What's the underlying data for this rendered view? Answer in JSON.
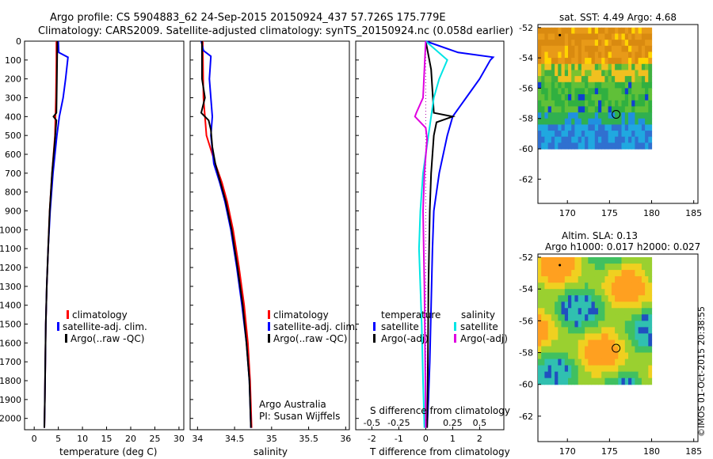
{
  "header": {
    "line1": "Argo profile: CS 5904883_62 24-Sep-2015 20150924_437 57.726S 175.779E",
    "line2": "Climatology: CARS2009. Satellite-adjusted climatology: synTS_20150924.nc (0.058d earlier)"
  },
  "depth_ticks": [
    "0",
    "100",
    "200",
    "300",
    "400",
    "500",
    "600",
    "700",
    "800",
    "900",
    "1000",
    "1100",
    "1200",
    "1300",
    "1400",
    "1500",
    "1600",
    "1700",
    "1800",
    "1900",
    "2000"
  ],
  "colors": {
    "climatology": "#ff0000",
    "satellite": "#0000ff",
    "argo": "#000000",
    "sat_salinity": "#00e5e5",
    "argo_salinity": "#e000e0"
  },
  "chart_data": [
    {
      "type": "line",
      "panel": "temperature",
      "xlabel": "temperature (deg C)",
      "xticks": [
        "0",
        "5",
        "10",
        "15",
        "20",
        "25",
        "30"
      ],
      "xlim": [
        -2,
        31
      ],
      "ylim": [
        2060,
        0
      ],
      "legend": [
        "climatology",
        "satellite-adj. clim.",
        "Argo(..raw -QC)"
      ],
      "series": [
        {
          "name": "climatology",
          "color": "#ff0000",
          "points": [
            [
              4.6,
              0
            ],
            [
              4.6,
              100
            ],
            [
              4.5,
              300
            ],
            [
              4.3,
              500
            ],
            [
              3.7,
              700
            ],
            [
              3.2,
              900
            ],
            [
              2.9,
              1100
            ],
            [
              2.6,
              1300
            ],
            [
              2.4,
              1500
            ],
            [
              2.3,
              1700
            ],
            [
              2.2,
              1900
            ],
            [
              2.1,
              2050
            ]
          ]
        },
        {
          "name": "satellite-adj. clim.",
          "color": "#0000ff",
          "points": [
            [
              5.0,
              0
            ],
            [
              5.1,
              60
            ],
            [
              7.0,
              85
            ],
            [
              6.5,
              200
            ],
            [
              6.0,
              300
            ],
            [
              5.2,
              400
            ],
            [
              4.7,
              500
            ],
            [
              3.9,
              700
            ],
            [
              3.3,
              900
            ],
            [
              2.9,
              1100
            ],
            [
              2.6,
              1300
            ],
            [
              2.4,
              1500
            ],
            [
              2.3,
              1700
            ],
            [
              2.2,
              1900
            ],
            [
              2.1,
              2050
            ]
          ]
        },
        {
          "name": "Argo(..raw -QC)",
          "color": "#000000",
          "points": [
            [
              4.8,
              0
            ],
            [
              4.7,
              200
            ],
            [
              4.6,
              380
            ],
            [
              4.0,
              400
            ],
            [
              4.6,
              420
            ],
            [
              4.3,
              520
            ],
            [
              3.7,
              700
            ],
            [
              3.2,
              900
            ],
            [
              2.9,
              1100
            ],
            [
              2.6,
              1300
            ],
            [
              2.4,
              1500
            ],
            [
              2.3,
              1700
            ],
            [
              2.2,
              1900
            ],
            [
              2.1,
              2050
            ]
          ]
        }
      ]
    },
    {
      "type": "line",
      "panel": "salinity",
      "xlabel": "salinity",
      "xticks": [
        "34",
        "34.5",
        "35",
        "35.5",
        "36"
      ],
      "xlim": [
        33.9,
        36.05
      ],
      "ylim": [
        2060,
        0
      ],
      "legend": [
        "climatology",
        "satellite-adj. clim.",
        "Argo(..raw -QC)",
        "Argo Australia",
        "PI: Susan Wijffels"
      ],
      "series": [
        {
          "name": "climatology",
          "color": "#ff0000",
          "points": [
            [
              34.07,
              0
            ],
            [
              34.08,
              300
            ],
            [
              34.12,
              500
            ],
            [
              34.24,
              650
            ],
            [
              34.33,
              750
            ],
            [
              34.4,
              850
            ],
            [
              34.48,
              1000
            ],
            [
              34.56,
              1200
            ],
            [
              34.63,
              1400
            ],
            [
              34.68,
              1600
            ],
            [
              34.71,
              1800
            ],
            [
              34.73,
              2050
            ]
          ]
        },
        {
          "name": "satellite-adj. clim.",
          "color": "#0000ff",
          "points": [
            [
              34.05,
              0
            ],
            [
              34.08,
              50
            ],
            [
              34.18,
              80
            ],
            [
              34.16,
              200
            ],
            [
              34.2,
              400
            ],
            [
              34.18,
              500
            ],
            [
              34.22,
              650
            ],
            [
              34.3,
              750
            ],
            [
              34.37,
              850
            ],
            [
              34.45,
              1000
            ],
            [
              34.53,
              1200
            ],
            [
              34.6,
              1400
            ],
            [
              34.66,
              1600
            ],
            [
              34.7,
              1800
            ],
            [
              34.72,
              2050
            ]
          ]
        },
        {
          "name": "Argo(..raw -QC)",
          "color": "#000000",
          "points": [
            [
              34.06,
              0
            ],
            [
              34.06,
              200
            ],
            [
              34.1,
              300
            ],
            [
              34.05,
              380
            ],
            [
              34.15,
              420
            ],
            [
              34.18,
              470
            ],
            [
              34.2,
              560
            ],
            [
              34.24,
              650
            ],
            [
              34.31,
              750
            ],
            [
              34.38,
              850
            ],
            [
              34.46,
              1000
            ],
            [
              34.54,
              1200
            ],
            [
              34.61,
              1400
            ],
            [
              34.66,
              1600
            ],
            [
              34.7,
              1800
            ],
            [
              34.72,
              2050
            ]
          ]
        }
      ]
    },
    {
      "type": "line",
      "panel": "difference",
      "xlabel": "T difference from climatology",
      "xlabel2": "S difference from climatology",
      "xticks": [
        "-2",
        "-1",
        "0",
        "1",
        "2"
      ],
      "sticks": [
        "-0.5",
        "-0.25",
        "0",
        "0.25",
        "0.5"
      ],
      "xlim": [
        -2.6,
        2.9
      ],
      "ylim": [
        2060,
        0
      ],
      "legend": [
        "temperature",
        "satellite",
        "Argo(-adj)",
        "salinity",
        "satellite",
        "Argo(-adj)"
      ],
      "series": [
        {
          "name": "satellite",
          "color": "#0000ff",
          "points": [
            [
              0.0,
              0
            ],
            [
              1.2,
              60
            ],
            [
              2.5,
              85
            ],
            [
              2.4,
              100
            ],
            [
              2.0,
              200
            ],
            [
              1.5,
              300
            ],
            [
              1.0,
              400
            ],
            [
              0.8,
              500
            ],
            [
              0.5,
              700
            ],
            [
              0.3,
              900
            ],
            [
              0.25,
              1100
            ],
            [
              0.2,
              1400
            ],
            [
              0.15,
              1700
            ],
            [
              0.1,
              1900
            ],
            [
              0.05,
              2050
            ]
          ]
        },
        {
          "name": "Argo(-adj)",
          "color": "#000000",
          "points": [
            [
              0.0,
              0
            ],
            [
              0.2,
              150
            ],
            [
              0.3,
              380
            ],
            [
              1.0,
              400
            ],
            [
              0.4,
              430
            ],
            [
              0.3,
              500
            ],
            [
              0.2,
              700
            ],
            [
              0.15,
              900
            ],
            [
              0.1,
              1300
            ],
            [
              0.08,
              1700
            ],
            [
              0.05,
              2050
            ]
          ]
        },
        {
          "name": "satellite",
          "color": "#00e5e5",
          "points": [
            [
              0.0,
              0
            ],
            [
              0.8,
              100
            ],
            [
              0.5,
              200
            ],
            [
              0.3,
              300
            ],
            [
              0.1,
              500
            ],
            [
              -0.1,
              700
            ],
            [
              -0.2,
              900
            ],
            [
              -0.25,
              1100
            ],
            [
              -0.15,
              1500
            ],
            [
              -0.1,
              1800
            ],
            [
              -0.05,
              2050
            ]
          ]
        },
        {
          "name": "Argo(-adj)",
          "color": "#e000e0",
          "points": [
            [
              0.0,
              0
            ],
            [
              -0.05,
              150
            ],
            [
              -0.1,
              300
            ],
            [
              -0.35,
              380
            ],
            [
              -0.4,
              400
            ],
            [
              0.0,
              460
            ],
            [
              0.05,
              520
            ],
            [
              -0.05,
              700
            ],
            [
              -0.1,
              900
            ],
            [
              -0.05,
              1300
            ],
            [
              -0.02,
              1700
            ],
            [
              0.0,
              2050
            ]
          ]
        }
      ]
    },
    {
      "type": "heatmap",
      "panel": "sst_map",
      "title": "sat. SST: 4.49 Argo: 4.68",
      "xticks": [
        "170",
        "175",
        "180",
        "185"
      ],
      "yticks": [
        "-52",
        "-54",
        "-56",
        "-58",
        "-60",
        "-62"
      ],
      "xlim": [
        166.5,
        185.5
      ],
      "ylim": [
        -63.6,
        -51.8
      ]
    },
    {
      "type": "heatmap",
      "panel": "sla_map",
      "title": "Altim. SLA: 0.13",
      "subtitle": "Argo h1000: 0.017 h2000: 0.027",
      "xticks": [
        "170",
        "175",
        "180",
        "185"
      ],
      "yticks": [
        "-52",
        "-54",
        "-56",
        "-58",
        "-60",
        "-62"
      ],
      "xlim": [
        166.5,
        185.5
      ],
      "ylim": [
        -63.6,
        -51.8
      ]
    }
  ],
  "footer_stamp": "©IMOS 01-Oct-2015 20:38:55"
}
